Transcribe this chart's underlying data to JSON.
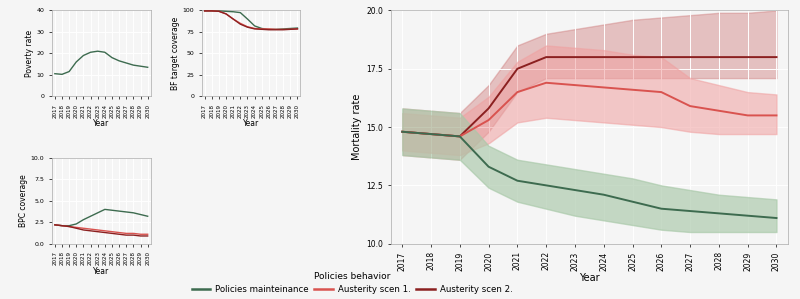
{
  "years": [
    2017,
    2018,
    2019,
    2020,
    2021,
    2022,
    2023,
    2024,
    2025,
    2026,
    2027,
    2028,
    2029,
    2030
  ],
  "poverty_rate": [
    10.5,
    10.2,
    11.5,
    16.0,
    19.0,
    20.5,
    21.0,
    20.5,
    18.0,
    16.5,
    15.5,
    14.5,
    14.0,
    13.5
  ],
  "bf_coverage_green": [
    99.5,
    99.5,
    99.5,
    99.0,
    98.5,
    97.5,
    90.0,
    82.0,
    79.0,
    78.0,
    78.0,
    78.5,
    79.0,
    79.5
  ],
  "bf_coverage_red1": [
    99.5,
    99.5,
    99.0,
    96.0,
    90.0,
    85.0,
    81.0,
    79.0,
    78.5,
    78.5,
    78.0,
    78.0,
    78.0,
    78.5
  ],
  "bf_coverage_red2": [
    99.5,
    99.5,
    99.0,
    96.0,
    90.0,
    84.0,
    80.5,
    78.5,
    78.0,
    77.5,
    77.5,
    77.5,
    78.0,
    78.5
  ],
  "bpc_coverage_green": [
    2.2,
    2.1,
    2.1,
    2.3,
    2.8,
    3.2,
    3.6,
    4.0,
    3.9,
    3.8,
    3.7,
    3.6,
    3.4,
    3.2
  ],
  "bpc_coverage_red1": [
    2.2,
    2.1,
    2.0,
    1.9,
    1.8,
    1.7,
    1.6,
    1.5,
    1.4,
    1.3,
    1.2,
    1.2,
    1.1,
    1.1
  ],
  "bpc_coverage_red2": [
    2.2,
    2.1,
    2.0,
    1.8,
    1.6,
    1.5,
    1.4,
    1.3,
    1.2,
    1.1,
    1.0,
    1.0,
    0.9,
    0.9
  ],
  "mortality_green_mean": [
    14.8,
    14.7,
    14.6,
    13.3,
    12.7,
    12.5,
    12.3,
    12.1,
    11.8,
    11.5,
    11.4,
    11.3,
    11.2,
    11.1
  ],
  "mortality_green_lo": [
    13.8,
    13.7,
    13.6,
    12.4,
    11.8,
    11.5,
    11.2,
    11.0,
    10.8,
    10.6,
    10.5,
    10.5,
    10.5,
    10.5
  ],
  "mortality_green_hi": [
    15.8,
    15.7,
    15.6,
    14.2,
    13.6,
    13.4,
    13.2,
    13.0,
    12.8,
    12.5,
    12.3,
    12.1,
    12.0,
    11.9
  ],
  "mortality_red1_mean": [
    14.8,
    14.7,
    14.6,
    15.3,
    16.5,
    16.9,
    16.8,
    16.7,
    16.6,
    16.5,
    15.9,
    15.7,
    15.5,
    15.5
  ],
  "mortality_red1_lo": [
    14.0,
    13.9,
    13.8,
    14.3,
    15.2,
    15.4,
    15.3,
    15.2,
    15.1,
    15.0,
    14.8,
    14.7,
    14.7,
    14.7
  ],
  "mortality_red1_hi": [
    15.6,
    15.5,
    15.4,
    16.3,
    17.8,
    18.5,
    18.4,
    18.3,
    18.1,
    18.0,
    17.1,
    16.8,
    16.5,
    16.4
  ],
  "mortality_red2_mean": [
    14.8,
    14.7,
    14.6,
    15.8,
    17.5,
    18.0,
    18.0,
    18.0,
    18.0,
    18.0,
    18.0,
    18.0,
    18.0,
    18.0
  ],
  "mortality_red2_lo": [
    13.8,
    13.7,
    13.6,
    14.8,
    16.5,
    17.1,
    17.1,
    17.1,
    17.1,
    17.1,
    17.1,
    17.1,
    17.1,
    17.1
  ],
  "mortality_red2_hi": [
    15.8,
    15.7,
    15.6,
    16.8,
    18.5,
    19.0,
    19.2,
    19.4,
    19.6,
    19.7,
    19.8,
    19.9,
    19.9,
    20.0
  ],
  "color_green": "#3d6b4f",
  "color_red1": "#d9534f",
  "color_red2": "#8b2020",
  "fill_green": "#a8c8a8",
  "fill_red1": "#f0a0a0",
  "fill_red2": "#d08080",
  "background": "#f5f5f5",
  "grid_color": "#ffffff",
  "spine_color": "#aaaaaa"
}
